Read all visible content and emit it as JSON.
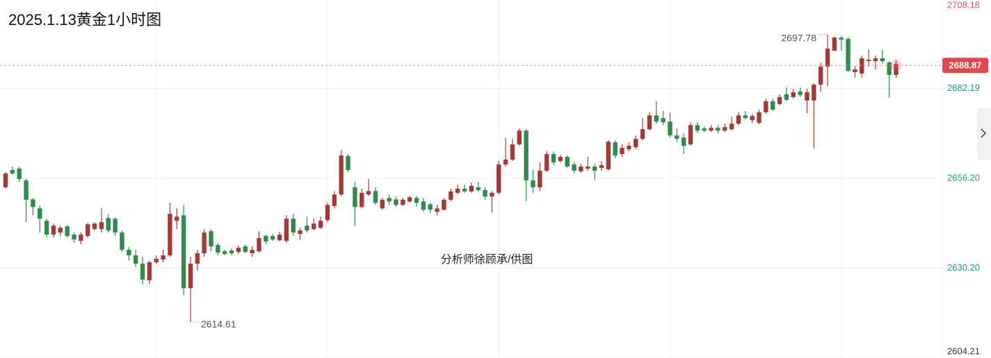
{
  "chart_data": {
    "type": "candlestick",
    "title": "2025.1.13黄金1小时图",
    "annotation": "分析师徐顾承/供图",
    "colors": {
      "up": "#a23a3a",
      "down": "#2e8a4e"
    },
    "ylim": [
      2604.21,
      2708.18
    ],
    "yticks": [
      2708.18,
      2682.19,
      {
        "value": 2656.2,
        "label": "2656.20"
      },
      {
        "value": 2630.2,
        "label": "2630.20"
      },
      2604.21
    ],
    "grid": true,
    "open": [
      2653.6,
      2658.6,
      2659.0,
      2655.6,
      2650.1,
      2647.5,
      2643.9,
      2639.9,
      2640.5,
      2642.3,
      2639.9,
      2638.1,
      2639.5,
      2641.5,
      2641.5,
      2644.7,
      2644.5,
      2640.5,
      2635.5,
      2633.9,
      2631.5,
      2626.7,
      2631.9,
      2632.7,
      2633.9,
      2643.9,
      2645.5,
      2624.4,
      2631.5,
      2634.5,
      2640.9,
      2636.9,
      2635.1,
      2635.3,
      2634.9,
      2636.5,
      2634.5,
      2635.1,
      2639.5,
      2639.5,
      2638.3,
      2638.1,
      2644.5,
      2640.1,
      2642.5,
      2641.5,
      2641.9,
      2644.1,
      2648.2,
      2651.5,
      2662.6,
      2653.6,
      2647.9,
      2651.5,
      2652.5,
      2647.5,
      2650.5,
      2650.1,
      2648.5,
      2649.5,
      2650.5,
      2649.5,
      2648.7,
      2646.5,
      2647.1,
      2650.0,
      2652.0,
      2653.2,
      2652.4,
      2653.6,
      2652.8,
      2650.9,
      2652.0,
      2660.2,
      2661.6,
      2666.0,
      2670.0,
      2655.6,
      2653.6,
      2658.4,
      2663.2,
      2661.2,
      2662.4,
      2660.2,
      2658.2,
      2659.0,
      2659.6,
      2659.2,
      2658.8,
      2666.6,
      2663.2,
      2664.6,
      2665.2,
      2667.6,
      2670.4,
      2674.4,
      2673.6,
      2672.6,
      2668.6,
      2668.0,
      2666.0,
      2671.6,
      2670.6,
      2670.0,
      2670.8,
      2670.0,
      2670.4,
      2672.0,
      2674.4,
      2673.0,
      2672.2,
      2675.3,
      2678.5,
      2677.7,
      2680.5,
      2679.7,
      2681.3,
      2678.7,
      2678.7,
      2683.3,
      2688.5,
      2693.1,
      2696.9,
      2696.5,
      2686.9,
      2686.5,
      2690.1,
      2690.1,
      2690.9,
      2689.7,
      2686.1
    ],
    "high": [
      2658.0,
      2659.6,
      2659.6,
      2656.0,
      2650.5,
      2648.3,
      2644.5,
      2643.1,
      2642.5,
      2642.7,
      2640.5,
      2640.5,
      2643.3,
      2643.5,
      2647.5,
      2645.9,
      2644.9,
      2641.1,
      2636.3,
      2635.5,
      2633.5,
      2632.3,
      2633.9,
      2635.5,
      2649.1,
      2647.5,
      2648.5,
      2633.5,
      2635.5,
      2641.5,
      2641.5,
      2637.5,
      2635.5,
      2635.9,
      2636.7,
      2637.1,
      2636.5,
      2640.9,
      2639.9,
      2640.1,
      2640.7,
      2645.5,
      2645.9,
      2641.9,
      2645.1,
      2644.5,
      2645.1,
      2649.1,
      2652.5,
      2664.4,
      2663.2,
      2655.2,
      2653.2,
      2656.0,
      2653.6,
      2650.5,
      2651.5,
      2650.9,
      2650.5,
      2651.1,
      2651.1,
      2650.5,
      2649.1,
      2648.5,
      2650.5,
      2653.2,
      2654.4,
      2654.4,
      2655.0,
      2655.2,
      2653.6,
      2652.5,
      2661.2,
      2668.0,
      2667.6,
      2670.6,
      2670.4,
      2658.6,
      2660.8,
      2664.0,
      2664.0,
      2663.0,
      2662.8,
      2661.0,
      2660.4,
      2662.4,
      2660.4,
      2661.2,
      2667.2,
      2667.2,
      2666.0,
      2666.6,
      2668.6,
      2673.6,
      2675.3,
      2678.5,
      2675.7,
      2675.3,
      2670.6,
      2669.2,
      2672.4,
      2672.4,
      2671.2,
      2671.6,
      2671.6,
      2672.0,
      2674.0,
      2675.3,
      2675.7,
      2674.8,
      2676.1,
      2679.3,
      2679.3,
      2680.5,
      2682.5,
      2682.1,
      2682.5,
      2682.1,
      2683.7,
      2689.7,
      2697.78,
      2697.2,
      2697.4,
      2697.1,
      2688.7,
      2691.7,
      2693.5,
      2691.7,
      2693.3,
      2690.1,
      2690.5
    ],
    "low": [
      2653.2,
      2657.2,
      2655.2,
      2643.5,
      2645.5,
      2640.5,
      2639.1,
      2639.1,
      2639.5,
      2639.1,
      2637.5,
      2637.1,
      2639.1,
      2641.1,
      2640.5,
      2640.5,
      2639.5,
      2634.9,
      2632.5,
      2630.5,
      2625.5,
      2625.5,
      2631.5,
      2631.9,
      2633.5,
      2641.5,
      2622.4,
      2614.61,
      2629.5,
      2633.5,
      2635.1,
      2633.9,
      2633.9,
      2633.9,
      2634.3,
      2634.5,
      2633.5,
      2634.7,
      2637.1,
      2638.1,
      2637.9,
      2637.5,
      2639.5,
      2638.5,
      2640.5,
      2641.1,
      2641.5,
      2643.5,
      2647.5,
      2651.1,
      2658.0,
      2642.5,
      2647.5,
      2651.1,
      2648.5,
      2647.1,
      2648.5,
      2647.9,
      2648.2,
      2649.1,
      2647.9,
      2646.5,
      2646.1,
      2645.5,
      2646.9,
      2649.5,
      2651.5,
      2652.0,
      2652.0,
      2652.4,
      2650.0,
      2646.3,
      2651.5,
      2659.6,
      2661.2,
      2665.6,
      2649.5,
      2652.0,
      2652.5,
      2658.0,
      2660.0,
      2660.8,
      2659.2,
      2657.6,
      2657.8,
      2658.4,
      2655.6,
      2658.4,
      2658.4,
      2662.0,
      2662.4,
      2664.0,
      2664.6,
      2667.2,
      2670.0,
      2672.0,
      2671.6,
      2668.0,
      2666.6,
      2663.2,
      2665.6,
      2669.2,
      2669.6,
      2669.6,
      2669.2,
      2669.6,
      2670.0,
      2671.6,
      2673.2,
      2672.2,
      2671.8,
      2674.8,
      2675.7,
      2677.3,
      2678.5,
      2679.3,
      2679.7,
      2675.0,
      2664.8,
      2681.3,
      2682.9,
      2693.1,
      2693.1,
      2686.9,
      2685.3,
      2685.3,
      2688.5,
      2687.7,
      2689.3,
      2679.5,
      2685.3
    ],
    "close": [
      2657.6,
      2657.6,
      2656.0,
      2650.0,
      2647.9,
      2644.5,
      2639.9,
      2642.5,
      2641.9,
      2639.5,
      2638.5,
      2639.9,
      2642.9,
      2643.1,
      2643.5,
      2641.1,
      2640.5,
      2635.5,
      2633.9,
      2631.5,
      2626.9,
      2631.9,
      2632.9,
      2633.9,
      2645.9,
      2645.1,
      2624.4,
      2631.5,
      2634.5,
      2640.5,
      2636.5,
      2634.7,
      2634.3,
      2634.5,
      2636.1,
      2634.9,
      2635.5,
      2638.9,
      2637.9,
      2638.5,
      2639.9,
      2644.5,
      2640.5,
      2641.1,
      2641.1,
      2643.1,
      2643.9,
      2648.5,
      2651.5,
      2662.8,
      2658.6,
      2647.9,
      2652.0,
      2652.5,
      2649.1,
      2650.0,
      2649.5,
      2648.5,
      2650.0,
      2650.7,
      2649.1,
      2647.1,
      2647.1,
      2647.5,
      2650.0,
      2652.4,
      2653.2,
      2652.4,
      2654.0,
      2652.8,
      2650.9,
      2652.0,
      2660.2,
      2661.6,
      2666.0,
      2670.0,
      2655.6,
      2653.6,
      2658.4,
      2663.2,
      2660.8,
      2662.4,
      2659.6,
      2658.4,
      2659.6,
      2659.6,
      2658.4,
      2660.0,
      2666.8,
      2662.8,
      2665.0,
      2665.6,
      2667.6,
      2670.4,
      2674.4,
      2672.6,
      2672.4,
      2668.6,
      2667.6,
      2665.6,
      2671.6,
      2670.0,
      2670.0,
      2670.8,
      2670.0,
      2671.0,
      2672.0,
      2674.4,
      2673.6,
      2674.2,
      2675.3,
      2678.5,
      2676.1,
      2679.7,
      2678.9,
      2681.1,
      2680.3,
      2681.1,
      2683.3,
      2688.5,
      2693.7,
      2696.9,
      2696.3,
      2687.3,
      2687.7,
      2690.9,
      2690.5,
      2690.9,
      2690.1,
      2686.1,
      2688.87
    ]
  }
}
